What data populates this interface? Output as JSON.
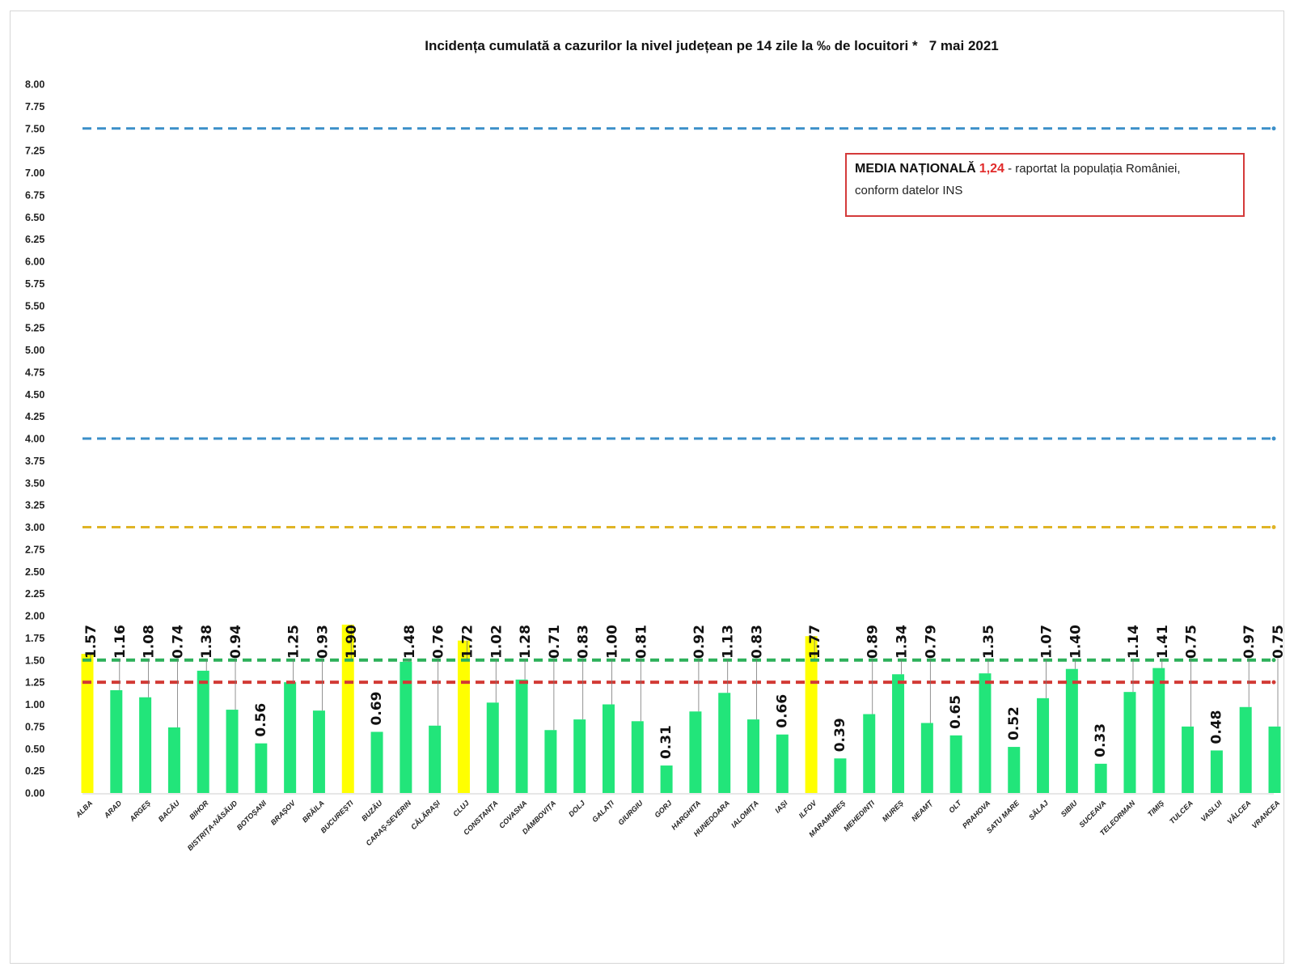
{
  "chart_data": {
    "type": "bar",
    "title": "Incidența cumulată a cazurilor la nivel județean pe 14 zile la ‰ de locuitori *   7 mai 2021",
    "ylim": [
      0,
      8
    ],
    "yticks": [
      "0.00",
      "0.25",
      "0.50",
      "0.75",
      "1.00",
      "1.25",
      "1.50",
      "1.75",
      "2.00",
      "2.25",
      "2.50",
      "2.75",
      "3.00",
      "3.25",
      "3.50",
      "3.75",
      "4.00",
      "4.25",
      "4.50",
      "4.75",
      "5.00",
      "5.25",
      "5.50",
      "5.75",
      "6.00",
      "6.25",
      "6.50",
      "6.75",
      "7.00",
      "7.25",
      "7.50",
      "7.75",
      "8.00"
    ],
    "grid": false,
    "categories": [
      "ALBA",
      "ARAD",
      "ARGEȘ",
      "BACĂU",
      "BIHOR",
      "BISTRIȚA-NĂSĂUD",
      "BOTOȘANI",
      "BRAȘOV",
      "BRĂILA",
      "BUCUREȘTI",
      "BUZĂU",
      "CARAȘ-SEVERIN",
      "CĂLĂRAȘI",
      "CLUJ",
      "CONSTANȚA",
      "COVASNA",
      "DÂMBOVIȚA",
      "DOLJ",
      "GALAȚI",
      "GIURGIU",
      "GORJ",
      "HARGHITA",
      "HUNEDOARA",
      "IALOMIȚA",
      "IAȘI",
      "ILFOV",
      "MARAMUREȘ",
      "MEHEDINȚI",
      "MUREȘ",
      "NEAMȚ",
      "OLT",
      "PRAHOVA",
      "SATU MARE",
      "SĂLAJ",
      "SIBIU",
      "SUCEAVA",
      "TELEORMAN",
      "TIMIȘ",
      "TULCEA",
      "VASLUI",
      "VÂLCEA",
      "VRANCEA"
    ],
    "values": [
      1.57,
      1.16,
      1.08,
      0.74,
      1.38,
      0.94,
      0.56,
      1.25,
      0.93,
      1.9,
      0.69,
      1.48,
      0.76,
      1.72,
      1.02,
      1.28,
      0.71,
      0.83,
      1.0,
      0.81,
      0.31,
      0.92,
      1.13,
      0.83,
      0.66,
      1.77,
      0.39,
      0.89,
      1.34,
      0.79,
      0.65,
      1.35,
      0.52,
      1.07,
      1.4,
      0.33,
      1.14,
      1.41,
      0.75,
      0.48,
      0.97,
      0.75
    ],
    "value_labels": [
      "1.57",
      "1.16",
      "1.08",
      "0.74",
      "1.38",
      "0.94",
      "0.56",
      "1.25",
      "0.93",
      "1.90",
      "0.69",
      "1.48",
      "0.76",
      "1.72",
      "1.02",
      "1.28",
      "0.71",
      "0.83",
      "1.00",
      "0.81",
      "0.31",
      "0.92",
      "1.13",
      "0.83",
      "0.66",
      "1.77",
      "0.39",
      "0.89",
      "1.34",
      "0.79",
      "0.65",
      "1.35",
      "0.52",
      "1.07",
      "1.40",
      "0.33",
      "1.14",
      "1.41",
      "0.75",
      "0.48",
      "0.97",
      "0.75"
    ],
    "bar_colors": {
      "default": "#22e57a",
      "highlight": "#ffff00"
    },
    "highlighted_categories": [
      "ALBA",
      "BUCUREȘTI",
      "CLUJ",
      "ILFOV"
    ],
    "reference_lines": [
      {
        "value": 7.5,
        "color": "#3b8fc9"
      },
      {
        "value": 4.0,
        "color": "#3b8fc9"
      },
      {
        "value": 3.0,
        "color": "#e0b426"
      },
      {
        "value": 1.5,
        "color": "#2db05a"
      },
      {
        "value": 1.25,
        "color": "#d23a35"
      }
    ],
    "annotation": {
      "label": "MEDIA NAȚIONALĂ",
      "value": "1,24",
      "text1": " - raportat la populația României,",
      "text2": "conform datelor INS",
      "border_color": "#d43a3a",
      "value_color": "#e12b2b"
    }
  }
}
